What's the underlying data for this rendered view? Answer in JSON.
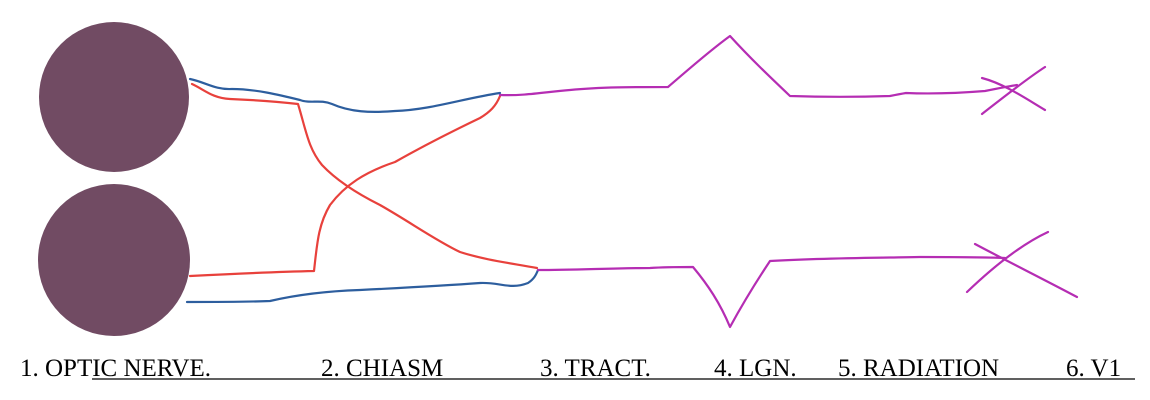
{
  "labels": {
    "optic_nerve": "1. OPTIC NERVE.",
    "chiasm": "2. CHIASM",
    "tract": "3. TRACT.",
    "lgn": "4. LGN.",
    "radiation": "5. RADIATION",
    "v1": "6. V1"
  },
  "colors": {
    "eye_fill": "#714B63",
    "temporal_fiber": "#2D5E9E",
    "nasal_fiber": "#E8413C",
    "post_chiasm": "#B52DB3",
    "underline": "#000000"
  }
}
